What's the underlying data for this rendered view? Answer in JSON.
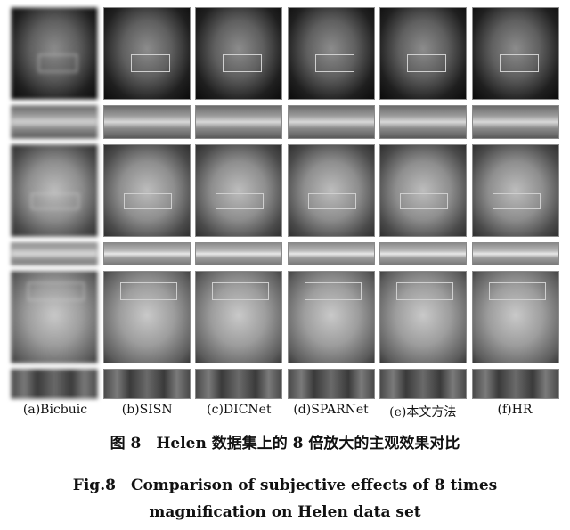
{
  "figure": {
    "labels": [
      "(a)Bicbuic",
      "(b)SISN",
      "(c)DICNet",
      "(d)SPARNet",
      "(e)本文方法",
      "(f)HR"
    ],
    "caption_cn": "图 8　Helen 数据集上的 8 倍放大的主观效果对比",
    "caption_en_line1": "Fig.8　Comparison of subjective effects of 8 times",
    "caption_en_line2": "magnification on Helen data set"
  }
}
